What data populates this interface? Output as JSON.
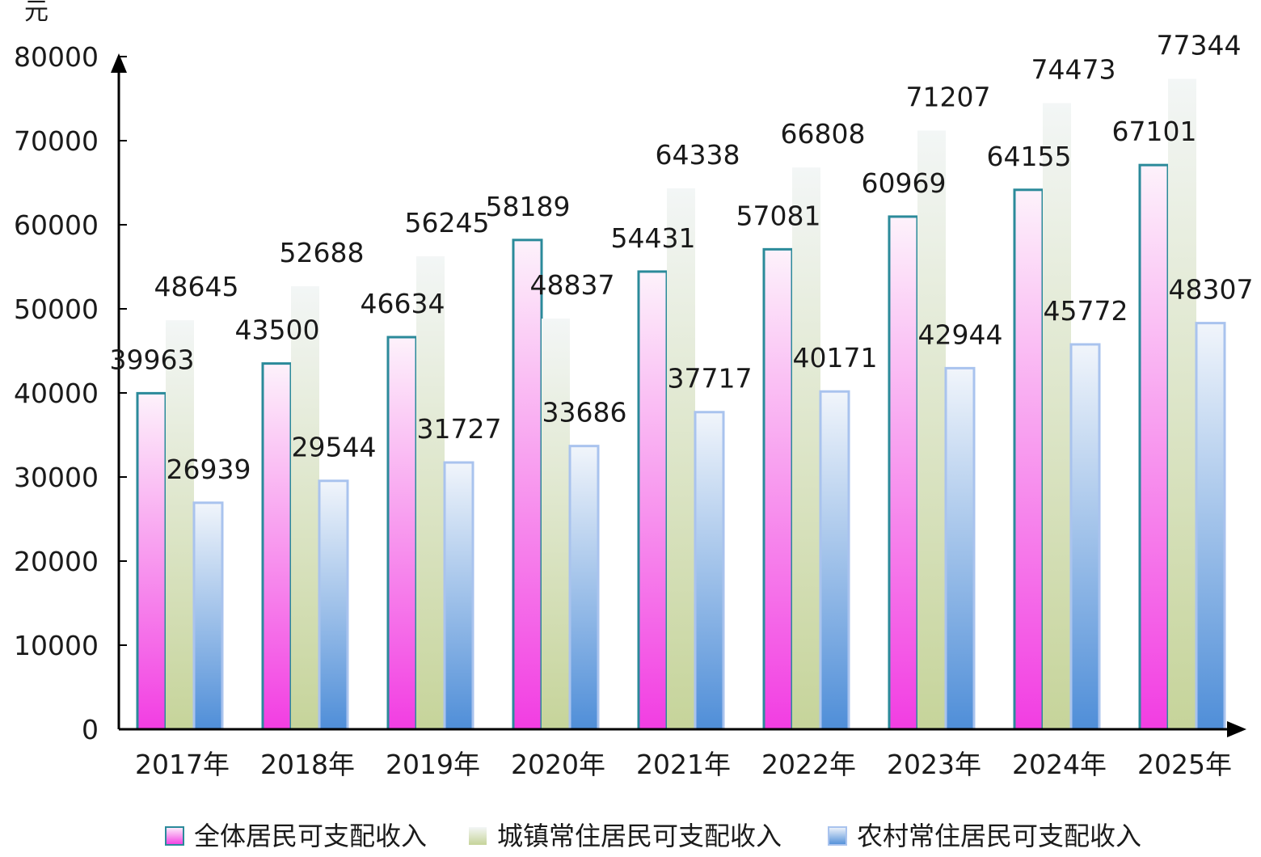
{
  "chart_data": {
    "type": "bar",
    "unit_label": "元",
    "categories": [
      "2017年",
      "2018年",
      "2019年",
      "2020年",
      "2021年",
      "2022年",
      "2023年",
      "2024年",
      "2025年"
    ],
    "series": [
      {
        "name": "全体居民可支配收入",
        "values": [
          39963,
          43500,
          46634,
          58189,
          54431,
          57081,
          60969,
          64155,
          67101
        ]
      },
      {
        "name": "城镇常住居民可支配收入",
        "values": [
          48645,
          52688,
          56245,
          48837,
          64338,
          66808,
          71207,
          74473,
          77344
        ]
      },
      {
        "name": "农村常住居民可支配收入",
        "values": [
          26939,
          29544,
          31727,
          33686,
          37717,
          40171,
          42944,
          45772,
          48307
        ]
      }
    ],
    "ylim": [
      0,
      80000
    ],
    "yticks": [
      0,
      10000,
      20000,
      30000,
      40000,
      50000,
      60000,
      70000,
      80000
    ],
    "legend_position": "bottom",
    "grid": false,
    "colors": {
      "series1_top": "#fdf2fb",
      "series1_bottom": "#f23de2",
      "series1_border": "#2b8a9a",
      "series2_top": "#f3f6f6",
      "series2_bottom": "#c6d49a",
      "series3_top": "#f1f5fb",
      "series3_bottom": "#4f8ed8",
      "series3_border": "#a9c3ee",
      "axis": "#000000"
    }
  }
}
